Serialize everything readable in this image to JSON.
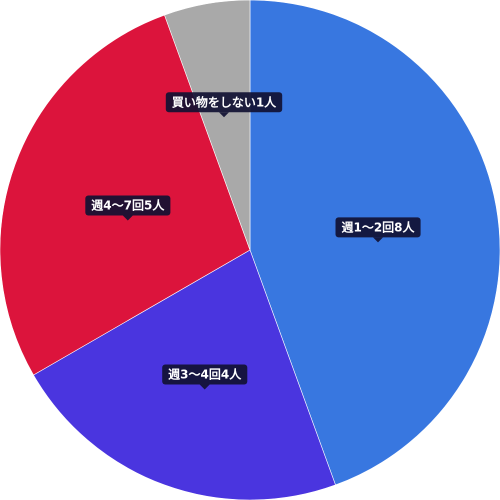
{
  "chart_data": {
    "type": "pie",
    "start_angle_deg": 0,
    "direction": "clockwise",
    "legend": "none",
    "categories": [
      "週1〜2回",
      "週3〜4回",
      "週4〜7回",
      "買い物をしない"
    ],
    "values": [
      8,
      4,
      5,
      1
    ],
    "unit": "人",
    "colors": [
      "#3877e0",
      "#4a35df",
      "#dc143c",
      "#a9a9a9"
    ],
    "labels": [
      "週1〜2回8人",
      "週3〜4回4人",
      "週4〜7回5人",
      "買い物をしない1人"
    ]
  }
}
